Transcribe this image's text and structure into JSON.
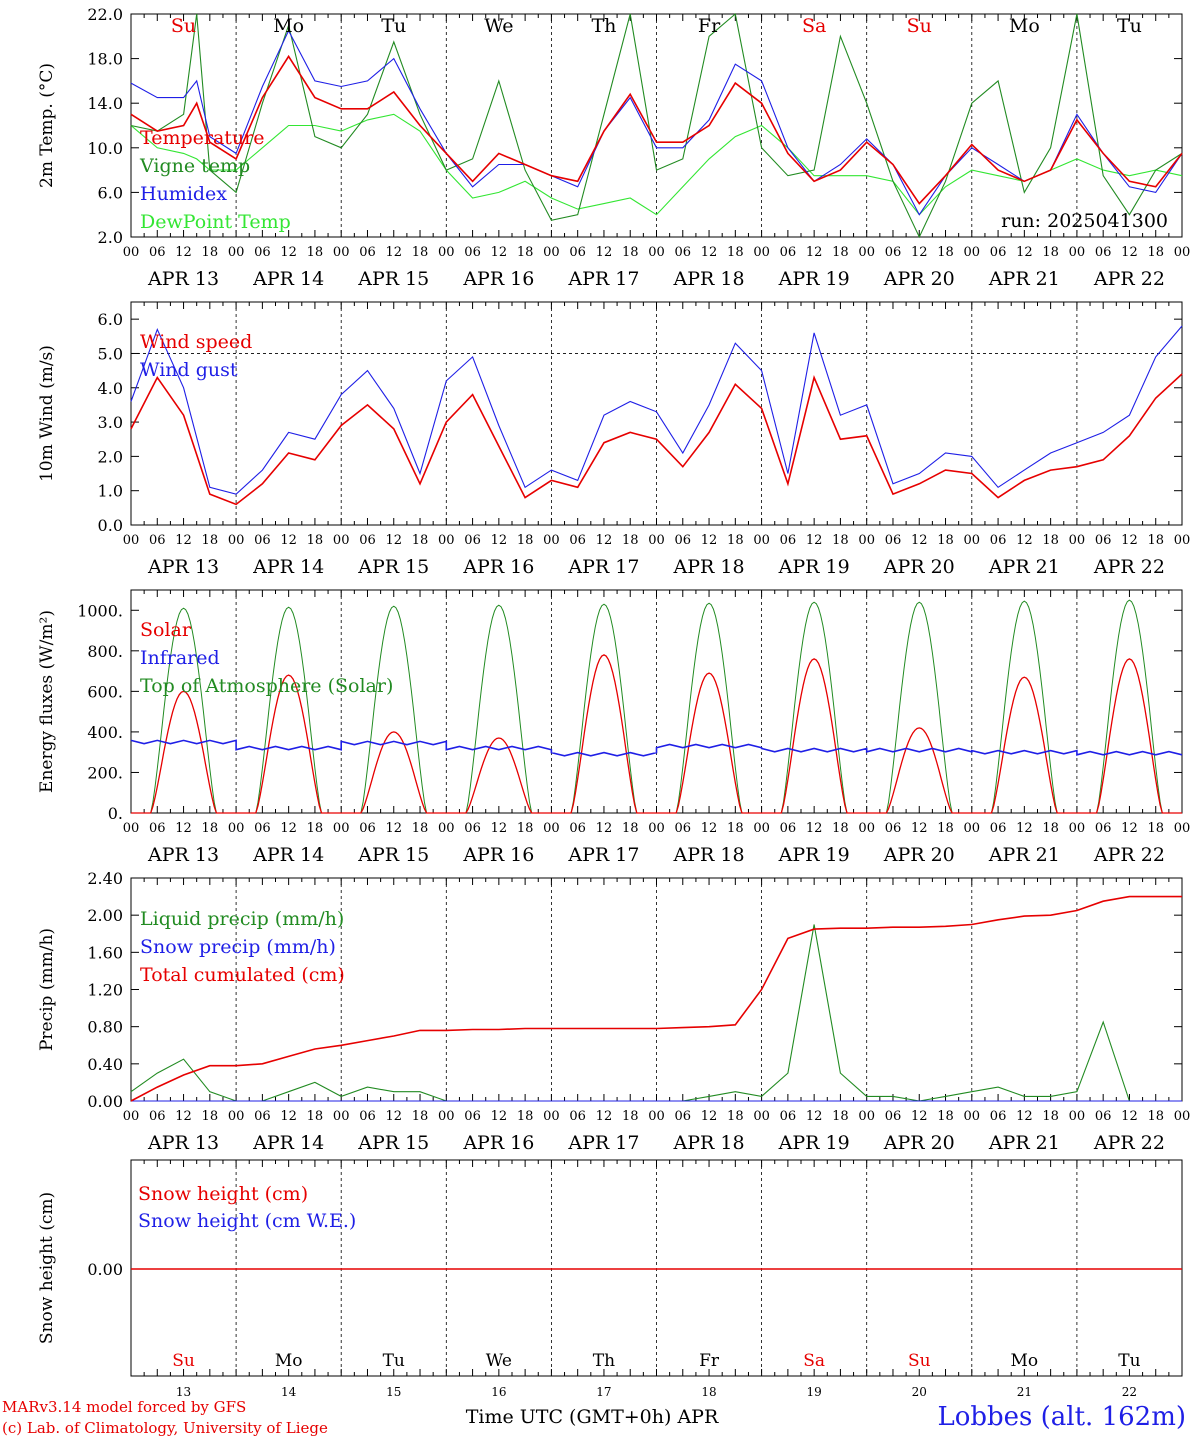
{
  "run_label": "run: 2025041300",
  "footer": {
    "model": "MARv3.14 model forced by GFS",
    "credit": "(c) Lab. of Climatology, University of Liege",
    "station": "Lobbes (alt. 162m)",
    "xlabel": "Time UTC (GMT+0h) APR"
  },
  "days": {
    "weekday": [
      "Su",
      "Mo",
      "Tu",
      "We",
      "Th",
      "Fr",
      "Sa",
      "Su",
      "Mo",
      "Tu"
    ],
    "weekday_color": [
      "#e60000",
      "#000000",
      "#000000",
      "#000000",
      "#000000",
      "#000000",
      "#e60000",
      "#e60000",
      "#000000",
      "#000000"
    ],
    "date_labels": [
      "APR 13",
      "APR 14",
      "APR 15",
      "APR 16",
      "APR 17",
      "APR 18",
      "APR 19",
      "APR 20",
      "APR 21",
      "APR 22"
    ],
    "day_numbers": [
      "13",
      "14",
      "15",
      "16",
      "17",
      "18",
      "19",
      "20",
      "21",
      "22"
    ],
    "hour_ticks": [
      "00",
      "06",
      "12",
      "18"
    ],
    "final_tick": "00"
  },
  "chart_data": [
    {
      "type": "line",
      "ylabel": "2m Temp. (°C)",
      "ylim": [
        2.0,
        22.0
      ],
      "yticks": [
        "2.0",
        "6.0",
        "10.0",
        "14.0",
        "18.0",
        "22.0"
      ],
      "x_hours": [
        0,
        6,
        12,
        15,
        18,
        24,
        30,
        36,
        42,
        48,
        54,
        60,
        66,
        72,
        78,
        84,
        90,
        96,
        102,
        108,
        114,
        120,
        126,
        132,
        138,
        144,
        150,
        156,
        162,
        168,
        174,
        180,
        186,
        192,
        198,
        204,
        210,
        216,
        222,
        228,
        234,
        240
      ],
      "series": [
        {
          "name": "Temperature",
          "color": "#e60000",
          "values": [
            13.0,
            11.5,
            12.0,
            14.0,
            10.5,
            9.0,
            14.5,
            18.2,
            14.5,
            13.5,
            13.5,
            15.0,
            12.0,
            9.5,
            7.0,
            9.5,
            8.5,
            7.5,
            7.0,
            11.5,
            14.8,
            10.5,
            10.5,
            12.0,
            15.8,
            14.0,
            9.5,
            7.0,
            8.0,
            10.5,
            8.5,
            5.0,
            7.5,
            10.3,
            8.0,
            7.0,
            8.0,
            12.5,
            9.5,
            7.0,
            6.5,
            9.5
          ]
        },
        {
          "name": "Vigne temp",
          "color": "#228b22",
          "values": [
            12.0,
            11.5,
            13.0,
            22.0,
            8.0,
            6.0,
            14.0,
            21.0,
            11.0,
            10.0,
            13.0,
            19.5,
            13.0,
            8.0,
            9.0,
            16.0,
            8.0,
            3.5,
            4.0,
            13.0,
            22.0,
            8.0,
            9.0,
            20.0,
            22.0,
            10.0,
            7.5,
            8.0,
            20.0,
            14.0,
            7.0,
            2.0,
            7.0,
            14.0,
            16.0,
            6.0,
            10.0,
            22.0,
            7.5,
            4.0,
            8.0,
            9.5
          ]
        },
        {
          "name": "Humidex",
          "color": "#1f1fe6",
          "values": [
            15.8,
            14.5,
            14.5,
            16.0,
            11.0,
            9.5,
            15.5,
            20.5,
            16.0,
            15.5,
            16.0,
            18.0,
            13.5,
            9.5,
            6.5,
            8.5,
            8.5,
            7.5,
            6.5,
            11.5,
            14.5,
            10.0,
            10.0,
            12.5,
            17.5,
            16.0,
            10.0,
            7.0,
            8.5,
            10.8,
            8.5,
            4.0,
            7.5,
            10.0,
            8.5,
            7.0,
            8.0,
            13.0,
            9.5,
            6.5,
            6.0,
            9.5
          ]
        },
        {
          "name": "DewPoint Temp",
          "color": "#33e633",
          "values": [
            12.0,
            10.0,
            9.5,
            9.0,
            8.0,
            8.0,
            10.0,
            12.0,
            12.0,
            11.5,
            12.5,
            13.0,
            11.5,
            8.0,
            5.5,
            6.0,
            7.0,
            5.5,
            4.5,
            5.0,
            5.5,
            4.0,
            6.5,
            9.0,
            11.0,
            12.0,
            10.0,
            7.5,
            7.5,
            7.5,
            7.0,
            4.0,
            6.5,
            8.0,
            7.5,
            7.0,
            8.0,
            9.0,
            8.0,
            7.5,
            8.0,
            7.5
          ]
        }
      ]
    },
    {
      "type": "line",
      "ylabel": "10m Wind (m/s)",
      "ylim": [
        0.0,
        6.5
      ],
      "yticks": [
        "0.0",
        "1.0",
        "2.0",
        "3.0",
        "4.0",
        "5.0",
        "6.0"
      ],
      "x_hours": [
        0,
        6,
        12,
        18,
        24,
        30,
        36,
        42,
        48,
        54,
        60,
        66,
        72,
        78,
        84,
        90,
        96,
        102,
        108,
        114,
        120,
        126,
        132,
        138,
        144,
        150,
        156,
        162,
        168,
        174,
        180,
        186,
        192,
        198,
        204,
        210,
        216,
        222,
        228,
        234,
        240
      ],
      "series": [
        {
          "name": "Wind speed",
          "color": "#e60000",
          "values": [
            2.8,
            4.3,
            3.2,
            0.9,
            0.6,
            1.2,
            2.1,
            1.9,
            2.9,
            3.5,
            2.8,
            1.2,
            3.0,
            3.8,
            2.3,
            0.8,
            1.3,
            1.1,
            2.4,
            2.7,
            2.5,
            1.7,
            2.7,
            4.1,
            3.4,
            1.2,
            4.3,
            2.5,
            2.6,
            0.9,
            1.2,
            1.6,
            1.5,
            0.8,
            1.3,
            1.6,
            1.7,
            1.9,
            2.6,
            3.7,
            4.4
          ]
        },
        {
          "name": "Wind gust",
          "color": "#1f1fe6",
          "values": [
            3.6,
            5.7,
            4.0,
            1.1,
            0.9,
            1.6,
            2.7,
            2.5,
            3.8,
            4.5,
            3.4,
            1.5,
            4.2,
            4.9,
            2.9,
            1.1,
            1.6,
            1.3,
            3.2,
            3.6,
            3.3,
            2.1,
            3.5,
            5.3,
            4.5,
            1.5,
            5.6,
            3.2,
            3.5,
            1.2,
            1.5,
            2.1,
            2.0,
            1.1,
            1.6,
            2.1,
            2.4,
            2.7,
            3.2,
            4.9,
            5.8
          ]
        }
      ],
      "reference_line": 5.0
    },
    {
      "type": "line",
      "ylabel": "Energy fluxes (W/m²)",
      "ylim": [
        0,
        1100
      ],
      "yticks": [
        "0.",
        "200.",
        "400.",
        "600.",
        "800.",
        "1000."
      ],
      "x_hours": [
        0,
        3,
        6,
        9,
        12,
        15,
        18,
        21,
        24
      ],
      "series": [
        {
          "name": "Solar",
          "color": "#e60000",
          "daily_peaks": [
            600,
            680,
            400,
            370,
            780,
            690,
            760,
            420,
            670,
            760
          ]
        },
        {
          "name": "Infrared",
          "color": "#1f1fe6",
          "daily_mean": [
            350,
            320,
            345,
            320,
            290,
            330,
            310,
            310,
            300,
            295
          ]
        },
        {
          "name": "Top of Atmosphere (Solar)",
          "color": "#228b22",
          "daily_peaks": [
            1010,
            1015,
            1020,
            1025,
            1030,
            1035,
            1040,
            1040,
            1045,
            1050
          ]
        }
      ]
    },
    {
      "type": "line",
      "ylabel": "Precip (mm/h)",
      "ylim": [
        0.0,
        2.4
      ],
      "yticks": [
        "0.00",
        "0.40",
        "0.80",
        "1.20",
        "1.60",
        "2.00",
        "2.40"
      ],
      "x_hours": [
        0,
        6,
        12,
        18,
        24,
        30,
        36,
        42,
        48,
        54,
        60,
        66,
        72,
        78,
        84,
        90,
        96,
        102,
        108,
        114,
        120,
        126,
        132,
        138,
        144,
        150,
        156,
        162,
        168,
        174,
        180,
        186,
        192,
        198,
        204,
        210,
        216,
        222,
        228,
        234,
        240
      ],
      "series": [
        {
          "name": "Liquid precip (mm/h)",
          "color": "#228b22",
          "values": [
            0.1,
            0.3,
            0.45,
            0.1,
            0.0,
            0.0,
            0.1,
            0.2,
            0.05,
            0.15,
            0.1,
            0.1,
            0.0,
            0.0,
            0.0,
            0.0,
            0.0,
            0.0,
            0.0,
            0.0,
            0.0,
            0.0,
            0.05,
            0.1,
            0.05,
            0.3,
            1.9,
            0.3,
            0.05,
            0.05,
            0.0,
            0.05,
            0.1,
            0.15,
            0.05,
            0.05,
            0.1,
            0.85,
            0.0,
            0.0,
            0.0
          ]
        },
        {
          "name": "Snow precip (mm/h)",
          "color": "#1f1fe6",
          "values": [
            0,
            0,
            0,
            0,
            0,
            0,
            0,
            0,
            0,
            0,
            0,
            0,
            0,
            0,
            0,
            0,
            0,
            0,
            0,
            0,
            0,
            0,
            0,
            0,
            0,
            0,
            0,
            0,
            0,
            0,
            0,
            0,
            0,
            0,
            0,
            0,
            0,
            0,
            0,
            0,
            0
          ]
        },
        {
          "name": "Total cumulated (cm)",
          "color": "#e60000",
          "values": [
            0.0,
            0.15,
            0.28,
            0.38,
            0.38,
            0.4,
            0.48,
            0.56,
            0.6,
            0.65,
            0.7,
            0.76,
            0.76,
            0.77,
            0.77,
            0.78,
            0.78,
            0.78,
            0.78,
            0.78,
            0.78,
            0.79,
            0.8,
            0.82,
            1.2,
            1.75,
            1.85,
            1.86,
            1.86,
            1.87,
            1.87,
            1.88,
            1.9,
            1.95,
            1.99,
            2.0,
            2.05,
            2.15,
            2.2,
            2.2,
            2.2
          ]
        }
      ]
    },
    {
      "type": "line",
      "ylabel": "Snow height (cm)",
      "yticks": [
        "0.00"
      ],
      "series": [
        {
          "name": "Snow height (cm)",
          "color": "#e60000",
          "values": [
            0,
            0
          ]
        },
        {
          "name": "Snow height (cm W.E.)",
          "color": "#1f1fe6",
          "values": [
            0,
            0
          ]
        }
      ]
    }
  ]
}
